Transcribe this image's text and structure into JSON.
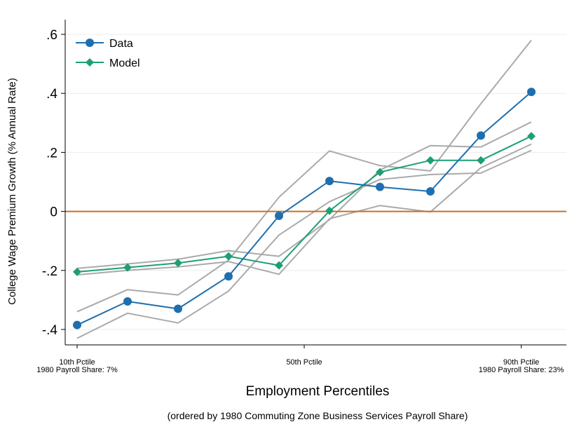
{
  "chart_data": {
    "type": "line",
    "xlabel": "Employment Percentiles",
    "note": "(ordered by 1980 Commuting Zone Business Services Payroll Share)",
    "ylabel": "College Wage Premium Growth (% Annual Rate)",
    "ylim": [
      -0.43,
      0.64
    ],
    "yticks": [
      {
        "value": 0.6,
        "label": ".6"
      },
      {
        "value": 0.4,
        "label": ".4"
      },
      {
        "value": 0.2,
        "label": ".2"
      },
      {
        "value": 0.0,
        "label": "0"
      },
      {
        "value": -0.2,
        "label": "-.2"
      },
      {
        "value": -0.4,
        "label": "-.4"
      }
    ],
    "xlim": [
      1,
      10.3
    ],
    "xticks": [
      {
        "value": 1,
        "lines": [
          "10th Pctile",
          "1980 Payroll Share: 7%"
        ]
      },
      {
        "value": 5.5,
        "lines": [
          "50th Pctile"
        ]
      },
      {
        "value": 9.8,
        "lines": [
          "90th Pctile",
          "1980 Payroll Share: 23%"
        ]
      }
    ],
    "x": [
      1,
      2,
      3,
      4,
      5,
      6,
      7,
      8,
      9,
      10
    ],
    "reference_line": {
      "y": 0,
      "color": "#c8711f"
    },
    "grid": true,
    "legend_position": "top-left",
    "series": [
      {
        "name": "Data",
        "color": "#1f6fae",
        "marker": "circle",
        "values": [
          -0.385,
          -0.305,
          -0.33,
          -0.22,
          -0.015,
          0.103,
          0.083,
          0.068,
          0.257,
          0.405
        ]
      },
      {
        "name": "Model",
        "color": "#1e9e77",
        "marker": "diamond",
        "values": [
          -0.205,
          -0.19,
          -0.175,
          -0.152,
          -0.183,
          0.002,
          0.133,
          0.173,
          0.173,
          0.255
        ]
      }
    ],
    "bounds": [
      {
        "color": "#aaaaaa",
        "values": [
          -0.34,
          -0.265,
          -0.283,
          -0.165,
          0.048,
          0.205,
          0.155,
          0.137,
          0.365,
          0.58
        ]
      },
      {
        "color": "#aaaaaa",
        "values": [
          -0.43,
          -0.345,
          -0.378,
          -0.27,
          -0.08,
          0.033,
          0.108,
          0.125,
          0.13,
          0.207
        ]
      },
      {
        "color": "#aaaaaa",
        "values": [
          -0.193,
          -0.178,
          -0.162,
          -0.133,
          -0.152,
          -0.028,
          0.14,
          0.223,
          0.218,
          0.303
        ]
      },
      {
        "color": "#aaaaaa",
        "values": [
          -0.215,
          -0.2,
          -0.188,
          -0.17,
          -0.213,
          -0.025,
          0.02,
          -0.002,
          0.148,
          0.228
        ]
      }
    ]
  }
}
